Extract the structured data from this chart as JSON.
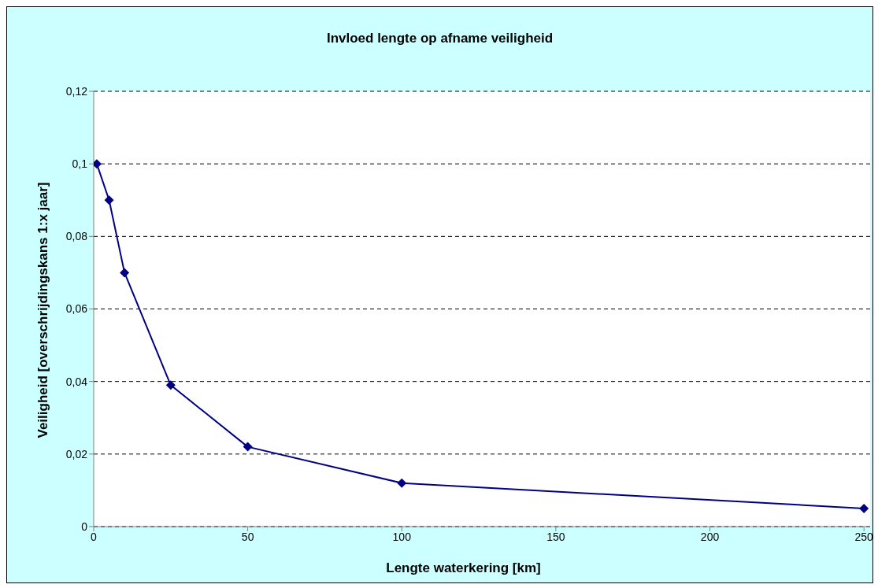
{
  "chart_data": {
    "type": "line",
    "title": "Invloed lengte op afname veiligheid",
    "xlabel": "Lengte waterkering [km]",
    "ylabel": "Veiligheid [overschrijdingskans 1:x jaar]",
    "x": [
      1,
      5,
      10,
      25,
      50,
      100,
      250
    ],
    "series": [
      {
        "color": "#000080",
        "values": [
          0.1,
          0.09,
          0.07,
          0.039,
          0.022,
          0.012,
          0.005
        ]
      }
    ],
    "xlim": [
      0,
      252
    ],
    "xticks": [
      0,
      50,
      100,
      150,
      200,
      250
    ],
    "ylim": [
      0,
      0.12
    ],
    "yticks": [
      0,
      {
        "value": 0.02,
        "label": "0,02"
      },
      {
        "value": 0.04,
        "label": "0,04"
      },
      {
        "value": 0.06,
        "label": "0,06"
      },
      {
        "value": 0.08,
        "label": "0,08"
      },
      {
        "value": 0.1,
        "label": "0,1"
      },
      {
        "value": 0.12,
        "label": "0,12"
      }
    ],
    "grid": "y",
    "marker": "diamond",
    "line_style": "solid",
    "legend": false
  }
}
